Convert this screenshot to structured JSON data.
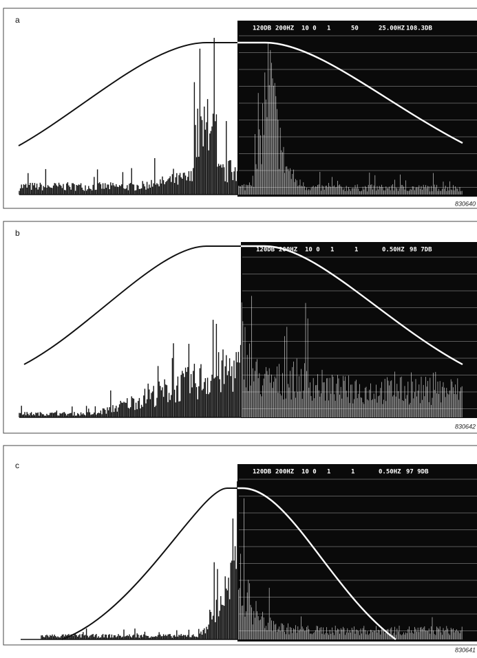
{
  "panels": [
    {
      "label": "a",
      "readout": [
        "120DB",
        "200HZ",
        "10 0",
        "1",
        "50",
        "25.00HZ",
        "108.3DB"
      ],
      "figure_id": "830640"
    },
    {
      "label": "b",
      "readout": [
        "120DB",
        "200HZ",
        "10 0",
        "1",
        "1",
        "0.50HZ",
        "98 7DB"
      ],
      "figure_id": "830642"
    },
    {
      "label": "c",
      "readout": [
        "120DB",
        "200HZ",
        "10 0",
        "1",
        "1",
        "0.50HZ",
        "97 9DB"
      ],
      "figure_id": "830641"
    }
  ]
}
